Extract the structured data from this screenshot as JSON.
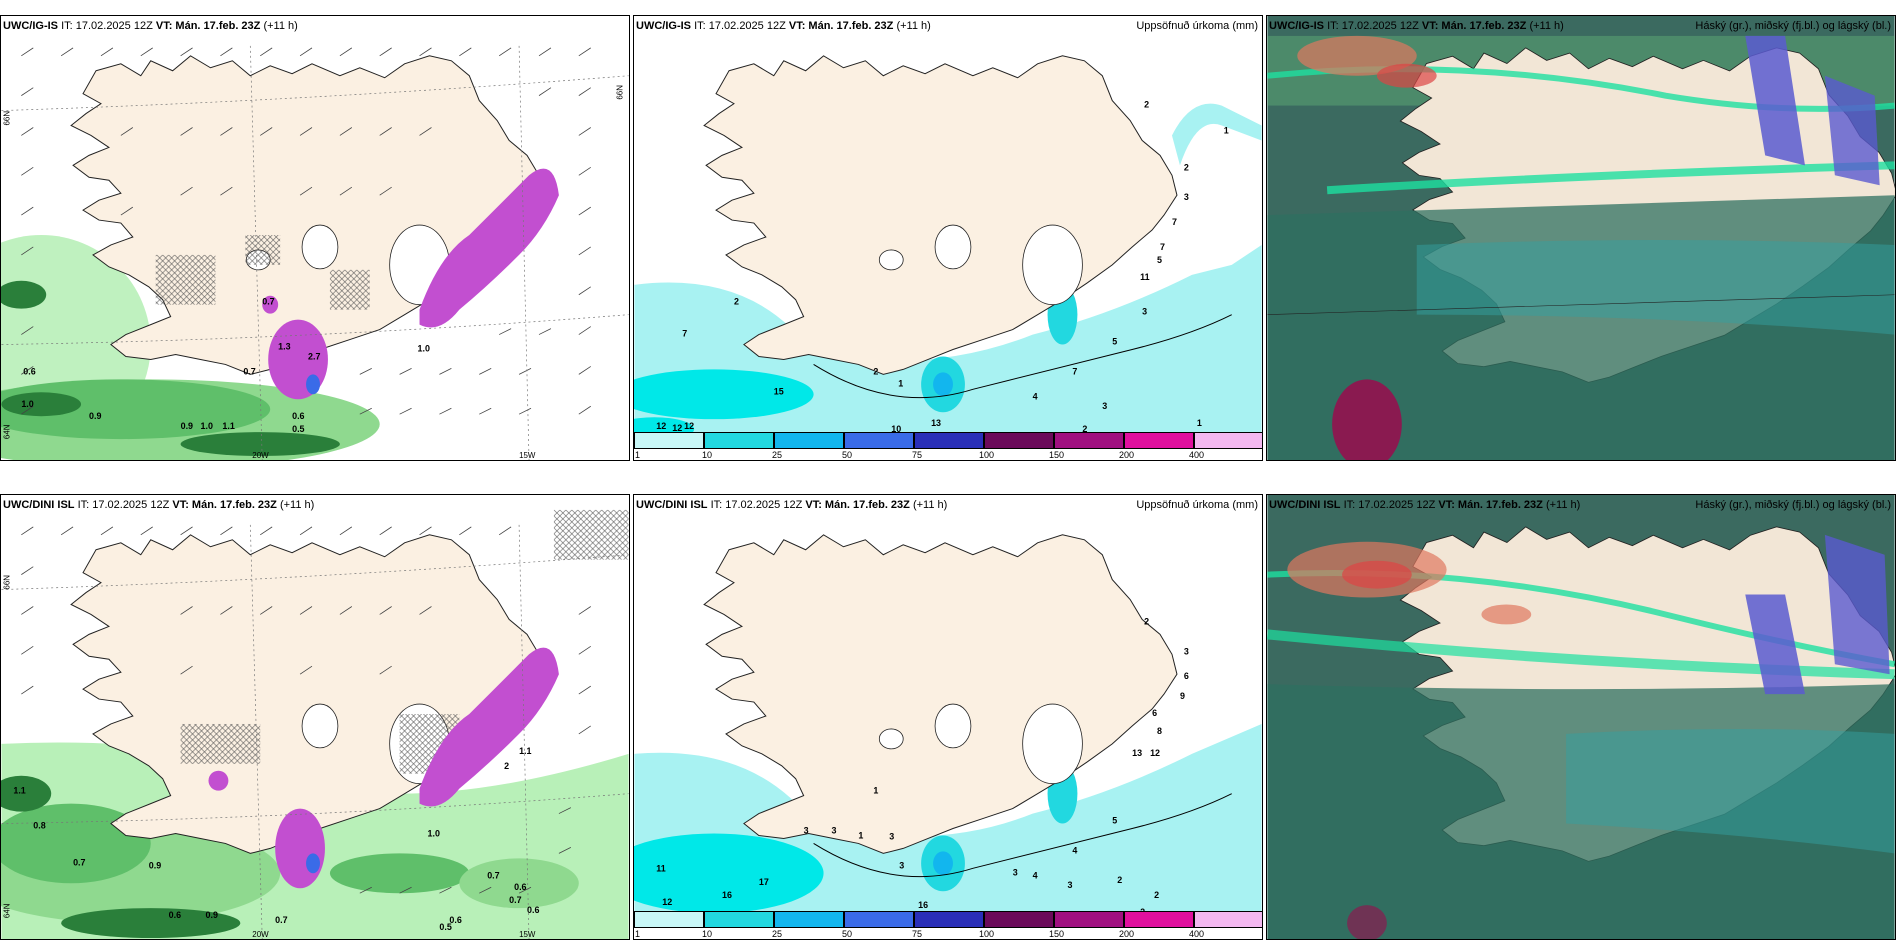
{
  "panels": {
    "top_left": {
      "model": "UWC/IG-IS",
      "it": "IT: 17.02.2025 12Z",
      "vt": "VT: Mán. 17.feb. 23Z",
      "lead": "(+11 h)"
    },
    "top_mid": {
      "model": "UWC/IG-IS",
      "it": "IT: 17.02.2025 12Z",
      "vt": "VT: Mán. 17.feb. 23Z",
      "lead": "(+11 h)",
      "right_title": "Uppsöfnuð úrkoma (mm)"
    },
    "top_right": {
      "model": "UWC/IG-IS",
      "it": "IT: 17.02.2025 12Z",
      "vt": "VT: Mán. 17.feb. 23Z",
      "lead": "(+11 h)",
      "right_title": "Háský (gr.), miðský (fj.bl.) og lágský (bl.)"
    },
    "bot_left": {
      "model": "UWC/DINI ISL",
      "it": "IT: 17.02.2025 12Z",
      "vt": "VT: Mán. 17.feb. 23Z",
      "lead": "(+11 h)"
    },
    "bot_mid": {
      "model": "UWC/DINI ISL",
      "it": "IT: 17.02.2025 12Z",
      "vt": "VT: Mán. 17.feb. 23Z",
      "lead": "(+11 h)",
      "right_title": "Uppsöfnuð úrkoma (mm)"
    },
    "bot_right": {
      "model": "UWC/DINI ISL",
      "it": "IT: 17.02.2025 12Z",
      "vt": "VT: Mán. 17.feb. 23Z",
      "lead": "(+11 h)",
      "right_title": "Háský (gr.), miðský (fj.bl.) og lágský (bl.)"
    }
  },
  "axis_labels": {
    "lon_20w": "20W",
    "lon_15w": "15W",
    "lat_66n": "66N",
    "lat_65n": "65N",
    "lat_64n": "64N"
  },
  "colorbar": {
    "labels": [
      "1",
      "10",
      "25",
      "50",
      "75",
      "100",
      "150",
      "200",
      "400"
    ],
    "colors": [
      "#c8f7f7",
      "#22d8e0",
      "#12b6ee",
      "#3a6be8",
      "#2a2fb8",
      "#6b0a5a",
      "#a01080",
      "#e0109e",
      "#f3b8f0"
    ]
  },
  "colors": {
    "land": "#fbf0e2",
    "precip_light": "#b8f0b8",
    "precip_mid": "#5fbf6a",
    "precip_dark": "#2a7f3a",
    "precip_heavy": "#c24fd0",
    "accum_light": "#a8f2f2",
    "accum_mid": "#00e8e8",
    "cloud_low": "#3b6a60",
    "cloud_mid": "#34a0a0",
    "cloud_high_blue": "#5a5ad0"
  },
  "top_left_values": [
    "0.6",
    "1.0",
    "0.9",
    "0.9",
    "1.0",
    "1.1",
    "0.7",
    "0.6",
    "0.5",
    "0.7",
    "1.3",
    "2.7",
    "1.0"
  ],
  "bot_left_values": [
    "1.1",
    "0.8",
    "0.7",
    "0.9",
    "0.6",
    "0.9",
    "0.7",
    "0.6",
    "0.7",
    "0.7",
    "0.6",
    "0.5",
    "0.6",
    "1.0",
    "1.1",
    "2"
  ],
  "top_mid_values": [
    "2",
    "1",
    "2",
    "3",
    "7",
    "7",
    "5",
    "11",
    "3",
    "5",
    "7",
    "4",
    "3",
    "2",
    "1",
    "7",
    "2",
    "15",
    "12",
    "12",
    "12",
    "10",
    "13",
    "1",
    "2"
  ],
  "bot_mid_values": [
    "2",
    "3",
    "6",
    "9",
    "6",
    "8",
    "12",
    "13",
    "5",
    "4",
    "4",
    "3",
    "2",
    "2",
    "2",
    "1",
    "3",
    "3",
    "1",
    "3",
    "3",
    "11",
    "17",
    "16",
    "12",
    "16",
    "3"
  ]
}
